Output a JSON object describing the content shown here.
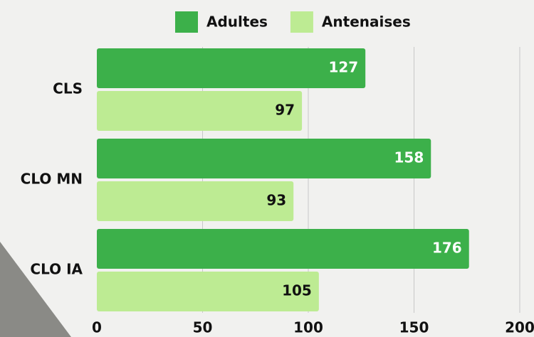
{
  "chart_data": {
    "type": "hbar",
    "categories": [
      "CLS",
      "CLO MN",
      "CLO IA"
    ],
    "series": [
      {
        "name": "Adultes",
        "color": "#3cb04a",
        "values": [
          127,
          158,
          176
        ]
      },
      {
        "name": "Antenaises",
        "color": "#bdeb93",
        "values": [
          97,
          93,
          105
        ]
      }
    ],
    "xlim": [
      0,
      200
    ],
    "xticks": [
      0,
      50,
      100,
      150,
      200
    ],
    "grid": true
  }
}
